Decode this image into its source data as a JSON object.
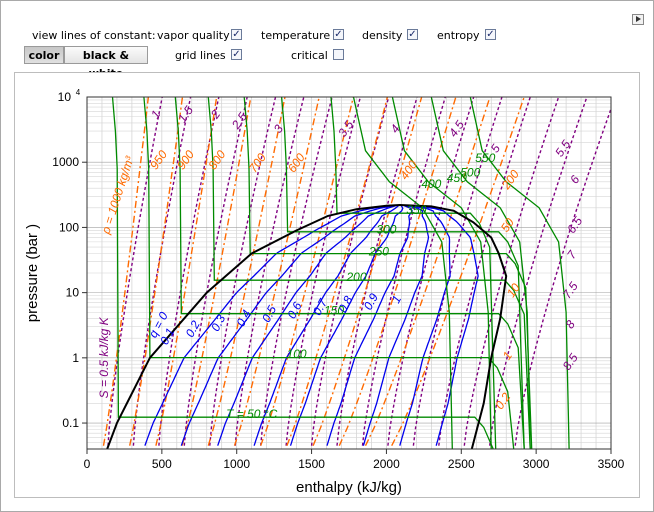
{
  "controls": {
    "view_label": "view lines of constant:",
    "options": [
      {
        "key": "vapor_quality",
        "label": "vapor quality",
        "checked": true
      },
      {
        "key": "temperature",
        "label": "temperature",
        "checked": true
      },
      {
        "key": "density",
        "label": "density",
        "checked": true
      },
      {
        "key": "entropy",
        "label": "entropy",
        "checked": true
      },
      {
        "key": "grid_lines",
        "label": "grid lines",
        "checked": true
      },
      {
        "key": "critical",
        "label": "critical",
        "checked": false
      }
    ],
    "mode_color": "color",
    "mode_bw": "black & white",
    "check_mark": "✓"
  },
  "chart_data": {
    "type": "line",
    "xlabel": "enthalpy (kJ/kg)",
    "ylabel": "pressure  (bar )",
    "xlim": [
      0,
      3500
    ],
    "ylim": [
      0.04,
      10000
    ],
    "yscale": "log",
    "grid": true,
    "x_ticks": [
      "0",
      "500",
      "1000",
      "1500",
      "2000",
      "2500",
      "3000",
      "3500"
    ],
    "y_ticks": [
      {
        "v": 0.1,
        "label": "0.1"
      },
      {
        "v": 1,
        "label": "1"
      },
      {
        "v": 10,
        "label": "10"
      },
      {
        "v": 100,
        "label": "100"
      },
      {
        "v": 1000,
        "label": "1000"
      }
    ],
    "y_top": {
      "base": "10",
      "exp": "4"
    },
    "colors": {
      "dome": "#000000",
      "quality": "#0000ee",
      "temperature": "#008a00",
      "density": "#ff6a00",
      "entropy": "#800080"
    },
    "dome": {
      "liquid": [
        [
          0,
          0.006
        ],
        [
          200,
          0.1
        ],
        [
          420,
          1
        ],
        [
          800,
          10
        ],
        [
          1100,
          40
        ],
        [
          1400,
          90
        ],
        [
          1610,
          150
        ],
        [
          1800,
          190
        ],
        [
          2000,
          215
        ],
        [
          2090,
          220.6
        ]
      ],
      "vapor": [
        [
          2090,
          220.6
        ],
        [
          2300,
          210
        ],
        [
          2450,
          180
        ],
        [
          2580,
          120
        ],
        [
          2700,
          70
        ],
        [
          2750,
          40
        ],
        [
          2800,
          18
        ],
        [
          2760,
          4
        ],
        [
          2700,
          1
        ],
        [
          2650,
          0.2
        ],
        [
          2570,
          0.04
        ]
      ]
    },
    "quality_lines": [
      {
        "q": 0.1,
        "label": "0.1"
      },
      {
        "q": 0.2,
        "label": "0.2"
      },
      {
        "q": 0.3,
        "label": "0.3"
      },
      {
        "q": 0.4,
        "label": "0.4"
      },
      {
        "q": 0.5,
        "label": "0.5"
      },
      {
        "q": 0.6,
        "label": "0.6"
      },
      {
        "q": 0.7,
        "label": "0.7"
      },
      {
        "q": 0.8,
        "label": "0.8"
      },
      {
        "q": 0.9,
        "label": "0.9"
      },
      {
        "q": 1.0,
        "label": "1"
      }
    ],
    "q_label": "q = 0",
    "isotherms": [
      {
        "T": 50,
        "p": 0.123,
        "hl": 210,
        "hv": 2590,
        "label": "T = 50 °C"
      },
      {
        "T": 100,
        "p": 1.01,
        "hl": 420,
        "hv": 2680,
        "label": "100"
      },
      {
        "T": 150,
        "p": 4.76,
        "hl": 630,
        "hv": 2750,
        "label": "150"
      },
      {
        "T": 200,
        "p": 15.5,
        "hl": 850,
        "hv": 2790,
        "label": "200"
      },
      {
        "T": 250,
        "p": 39.7,
        "hl": 1090,
        "hv": 2800,
        "label": "250"
      },
      {
        "T": 300,
        "p": 85.8,
        "hl": 1340,
        "hv": 2750,
        "label": "300"
      },
      {
        "T": 350,
        "p": 165,
        "hl": 1670,
        "hv": 2560,
        "label": "350"
      },
      {
        "T": 400,
        "p": null,
        "label": "400"
      },
      {
        "T": 450,
        "p": null,
        "label": "450"
      },
      {
        "T": 500,
        "p": null,
        "label": "500"
      },
      {
        "T": 550,
        "p": null,
        "label": "550"
      }
    ],
    "densities": [
      {
        "rho": 1000,
        "label": "ρ = 1000 kg/m³"
      },
      {
        "rho": 950,
        "label": "950"
      },
      {
        "rho": 900,
        "label": "900"
      },
      {
        "rho": 800,
        "label": "800"
      },
      {
        "rho": 700,
        "label": "700"
      },
      {
        "rho": 600,
        "label": "600"
      },
      {
        "rho": 400,
        "label": "400"
      },
      {
        "rho": 200,
        "label": "200"
      },
      {
        "rho": 50,
        "label": "50"
      },
      {
        "rho": 10,
        "label": "10"
      },
      {
        "rho": 1,
        "label": "1"
      },
      {
        "rho": 0.2,
        "label": "0.2"
      }
    ],
    "entropies": [
      {
        "s": 0.5,
        "label": "S = 0.5 kJ/kg K"
      },
      {
        "s": 1,
        "label": "1"
      },
      {
        "s": 1.5,
        "label": "1.5"
      },
      {
        "s": 2,
        "label": "2"
      },
      {
        "s": 2.5,
        "label": "2.5"
      },
      {
        "s": 3,
        "label": "3"
      },
      {
        "s": 3.5,
        "label": "3.5"
      },
      {
        "s": 4,
        "label": "4"
      },
      {
        "s": 4.5,
        "label": "4.5"
      },
      {
        "s": 5,
        "label": "5"
      },
      {
        "s": 5.5,
        "label": "5.5"
      },
      {
        "s": 6,
        "label": "6"
      },
      {
        "s": 6.5,
        "label": "6.5"
      },
      {
        "s": 7,
        "label": "7"
      },
      {
        "s": 7.5,
        "label": "7.5"
      },
      {
        "s": 8,
        "label": "8"
      },
      {
        "s": 8.5,
        "label": "8.5"
      }
    ]
  }
}
